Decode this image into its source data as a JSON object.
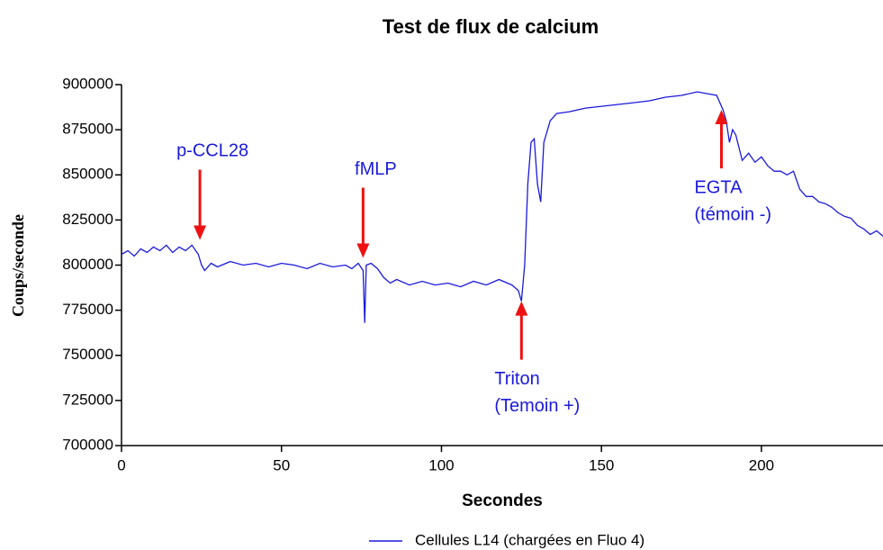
{
  "chart_data": {
    "type": "line",
    "title": "Test de flux de calcium",
    "x_label": "Secondes",
    "y_label": "Coups/seconde",
    "xlim": [
      0,
      238
    ],
    "xticks": [
      0,
      50,
      100,
      150,
      200
    ],
    "ylim": [
      700000,
      900000
    ],
    "yticks": [
      700000,
      725000,
      750000,
      775000,
      800000,
      825000,
      850000,
      875000,
      900000
    ],
    "x": [
      0,
      2,
      4,
      6,
      8,
      10,
      12,
      14,
      16,
      18,
      20,
      22,
      24,
      25,
      26,
      28,
      30,
      34,
      38,
      42,
      46,
      50,
      54,
      58,
      62,
      66,
      70,
      72,
      74,
      75.5,
      76,
      76.5,
      78,
      80,
      82,
      84,
      86,
      90,
      94,
      98,
      102,
      106,
      110,
      114,
      118,
      122,
      124,
      125,
      126,
      127,
      128,
      129,
      130,
      131,
      132,
      134,
      136,
      140,
      145,
      150,
      155,
      160,
      165,
      170,
      175,
      180,
      183,
      186,
      188,
      189,
      190,
      191,
      192,
      194,
      196,
      198,
      200,
      202,
      204,
      206,
      208,
      210,
      212,
      214,
      216,
      218,
      220,
      222,
      224,
      226,
      228,
      230,
      232,
      234,
      236,
      238
    ],
    "series": [
      {
        "name": "Cellules L14 (chargées en Fluo 4)",
        "color": "#1a1adb",
        "values": [
          806000,
          808000,
          805000,
          809000,
          807000,
          810000,
          808000,
          811000,
          807000,
          810000,
          808000,
          811000,
          806000,
          800000,
          797000,
          801000,
          799000,
          802000,
          800000,
          801000,
          799000,
          801000,
          800000,
          798000,
          801000,
          799000,
          800000,
          798000,
          801000,
          797000,
          768000,
          800000,
          801000,
          798000,
          793000,
          790000,
          792000,
          789000,
          791000,
          789000,
          790000,
          788000,
          791000,
          789000,
          792000,
          789000,
          786000,
          780000,
          800000,
          845000,
          868000,
          870000,
          845000,
          835000,
          868000,
          880000,
          884000,
          885000,
          887000,
          888000,
          889000,
          890000,
          891000,
          893000,
          894000,
          896000,
          895000,
          894000,
          886000,
          880000,
          868000,
          875000,
          872000,
          858000,
          862000,
          857000,
          860000,
          855000,
          852000,
          852000,
          850000,
          852000,
          842000,
          838000,
          838000,
          835000,
          834000,
          832000,
          829000,
          827000,
          826000,
          822000,
          820000,
          817000,
          819000,
          816000
        ]
      }
    ],
    "annotations": [
      {
        "text": [
          "p-CCL28"
        ],
        "x": 24.5,
        "y": 812000,
        "direction": "down"
      },
      {
        "text": [
          "fMLP"
        ],
        "x": 75.5,
        "y": 802000,
        "direction": "down"
      },
      {
        "text": [
          "Triton",
          "(Temoin +)"
        ],
        "x": 125,
        "y": 782000,
        "direction": "up"
      },
      {
        "text": [
          "EGTA",
          "(témoin -)"
        ],
        "x": 187.5,
        "y": 888000,
        "direction": "up"
      }
    ],
    "legend": "bottom"
  }
}
